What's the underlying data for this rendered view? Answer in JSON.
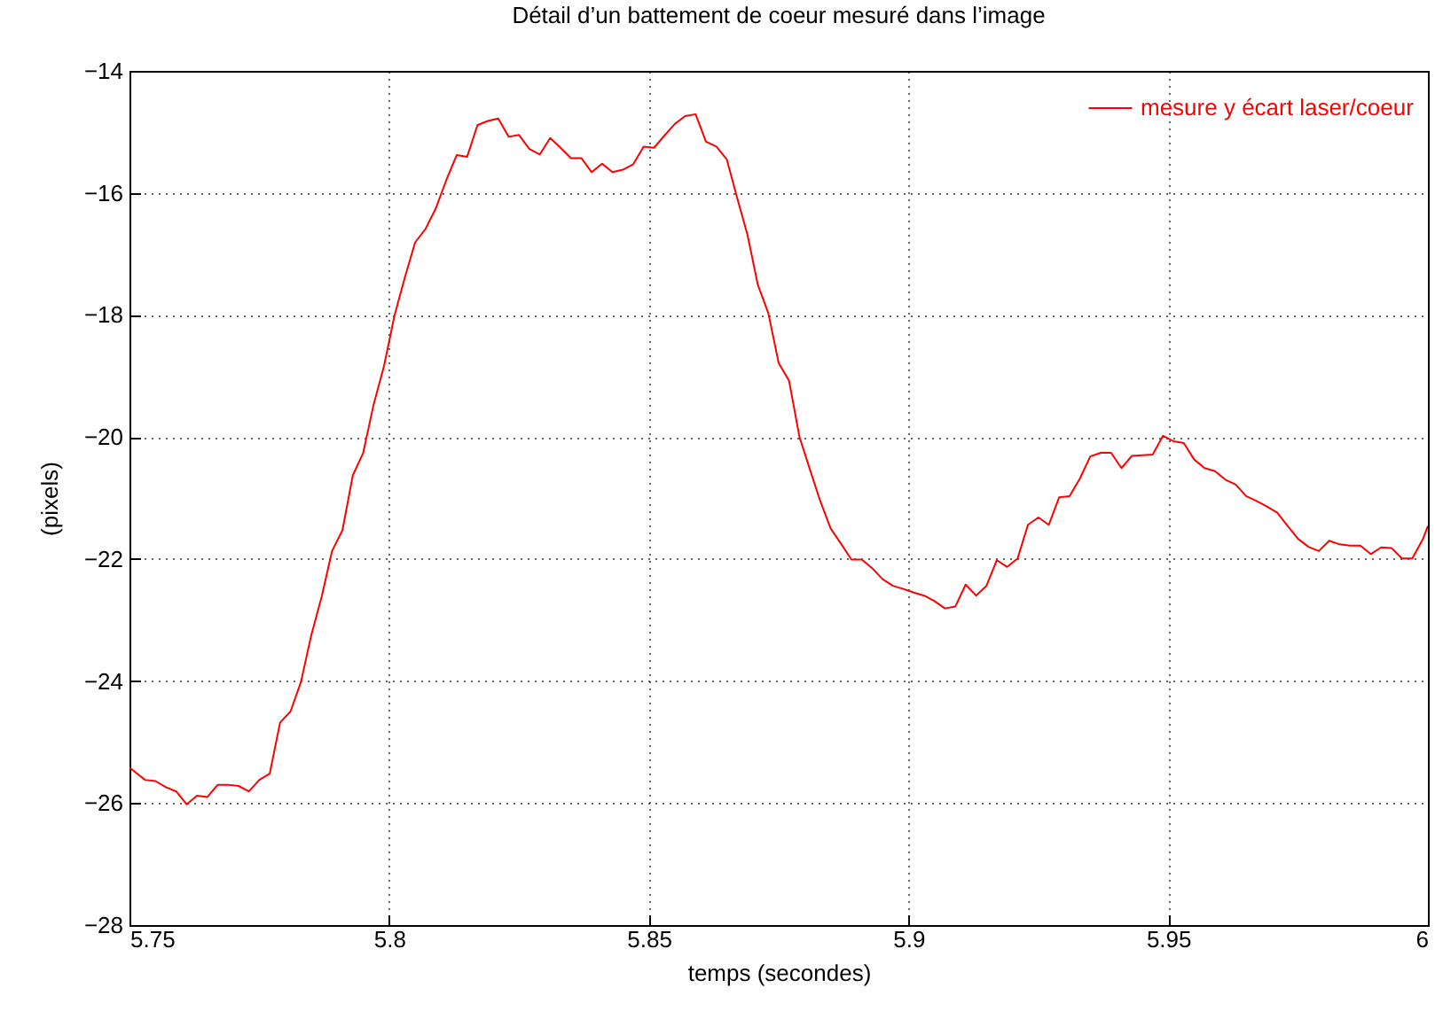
{
  "chart_data": {
    "type": "line",
    "title": "Détail d’un battement de coeur mesuré dans l’image",
    "xlabel": "temps (secondes)",
    "ylabel": "(pixels)",
    "x": [
      5.75,
      5.753,
      5.755,
      5.757,
      5.759,
      5.761,
      5.763,
      5.765,
      5.767,
      5.769,
      5.771,
      5.773,
      5.775,
      5.777,
      5.779,
      5.781,
      5.783,
      5.785,
      5.787,
      5.789,
      5.791,
      5.793,
      5.795,
      5.797,
      5.799,
      5.801,
      5.803,
      5.805,
      5.807,
      5.809,
      5.811,
      5.813,
      5.815,
      5.817,
      5.819,
      5.821,
      5.823,
      5.825,
      5.827,
      5.829,
      5.831,
      5.833,
      5.835,
      5.837,
      5.839,
      5.841,
      5.843,
      5.845,
      5.847,
      5.849,
      5.851,
      5.853,
      5.855,
      5.857,
      5.859,
      5.861,
      5.863,
      5.865,
      5.867,
      5.869,
      5.871,
      5.873,
      5.875,
      5.877,
      5.879,
      5.881,
      5.883,
      5.885,
      5.887,
      5.889,
      5.891,
      5.893,
      5.895,
      5.897,
      5.899,
      5.901,
      5.903,
      5.905,
      5.907,
      5.909,
      5.911,
      5.913,
      5.915,
      5.917,
      5.919,
      5.921,
      5.923,
      5.925,
      5.927,
      5.929,
      5.931,
      5.933,
      5.935,
      5.937,
      5.939,
      5.941,
      5.943,
      5.945,
      5.947,
      5.949,
      5.951,
      5.953,
      5.955,
      5.957,
      5.959,
      5.961,
      5.963,
      5.965,
      5.967,
      5.969,
      5.971,
      5.973,
      5.975,
      5.977,
      5.979,
      5.981,
      5.983,
      5.985,
      5.987,
      5.989,
      5.991,
      5.993,
      5.995,
      5.997,
      5.999,
      6.0
    ],
    "series": [
      {
        "name": "mesure y écart laser/coeur",
        "color": "#ff0000",
        "values": [
          -25.42,
          -25.62,
          -25.64,
          -25.74,
          -25.81,
          -26.02,
          -25.88,
          -25.9,
          -25.7,
          -25.7,
          -25.72,
          -25.81,
          -25.62,
          -25.52,
          -24.68,
          -24.5,
          -24.02,
          -23.25,
          -22.62,
          -21.87,
          -21.53,
          -20.63,
          -20.26,
          -19.47,
          -18.84,
          -18.02,
          -17.39,
          -16.81,
          -16.59,
          -16.25,
          -15.79,
          -15.38,
          -15.41,
          -14.89,
          -14.82,
          -14.78,
          -15.08,
          -15.05,
          -15.28,
          -15.37,
          -15.1,
          -15.26,
          -15.43,
          -15.43,
          -15.66,
          -15.52,
          -15.66,
          -15.62,
          -15.53,
          -15.24,
          -15.26,
          -15.06,
          -14.87,
          -14.74,
          -14.71,
          -15.16,
          -15.24,
          -15.45,
          -16.08,
          -16.69,
          -17.51,
          -17.97,
          -18.79,
          -19.08,
          -20.0,
          -20.53,
          -21.05,
          -21.5,
          -21.75,
          -22.01,
          -22.01,
          -22.15,
          -22.33,
          -22.44,
          -22.49,
          -22.55,
          -22.6,
          -22.69,
          -22.81,
          -22.78,
          -22.42,
          -22.6,
          -22.44,
          -22.02,
          -22.13,
          -21.99,
          -21.44,
          -21.32,
          -21.44,
          -20.99,
          -20.97,
          -20.68,
          -20.32,
          -20.26,
          -20.26,
          -20.51,
          -20.31,
          -20.3,
          -20.29,
          -19.98,
          -20.07,
          -20.1,
          -20.37,
          -20.51,
          -20.56,
          -20.7,
          -20.78,
          -20.97,
          -21.05,
          -21.14,
          -21.24,
          -21.46,
          -21.67,
          -21.8,
          -21.87,
          -21.7,
          -21.76,
          -21.78,
          -21.78,
          -21.92,
          -21.81,
          -21.82,
          -21.99,
          -21.99,
          -21.68,
          -21.46
        ]
      }
    ],
    "xlim": [
      5.75,
      6
    ],
    "ylim": [
      -28,
      -14
    ],
    "xticks": [
      5.75,
      5.8,
      5.85,
      5.9,
      5.95,
      6
    ],
    "yticks": [
      -28,
      -26,
      -24,
      -22,
      -20,
      -18,
      -16,
      -14
    ],
    "grid": true,
    "legend": "top right",
    "marker": "none",
    "line_style": "solid"
  }
}
